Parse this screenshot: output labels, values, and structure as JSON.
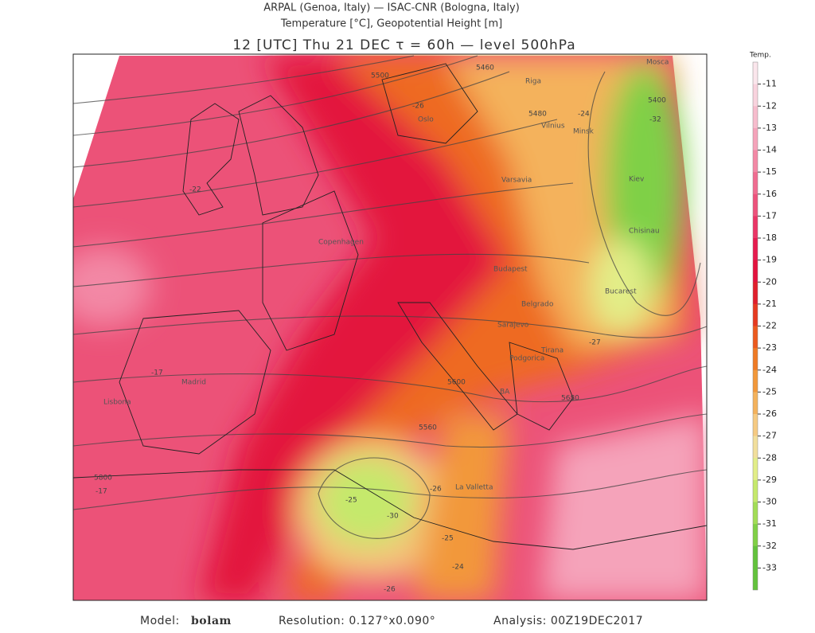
{
  "header": {
    "line1": "ARPAL (Genoa, Italy)  —  ISAC-CNR (Bologna, Italy)",
    "line2": "Temperature [°C], Geopotential Height [m]",
    "line3": "12 [UTC] Thu 21 DEC   τ = 60h   —   level 500hPa"
  },
  "colorbar": {
    "title": "Temp.",
    "levels": [
      {
        "value": -11,
        "color": "#fbe6ec"
      },
      {
        "value": -12,
        "color": "#f9d3de"
      },
      {
        "value": -13,
        "color": "#f7bccd"
      },
      {
        "value": -14,
        "color": "#f5a3ba"
      },
      {
        "value": -15,
        "color": "#f388a5"
      },
      {
        "value": -16,
        "color": "#f06c90"
      },
      {
        "value": -17,
        "color": "#ed527c"
      },
      {
        "value": -18,
        "color": "#ea3566"
      },
      {
        "value": -19,
        "color": "#e61b4f"
      },
      {
        "value": -20,
        "color": "#e3123e"
      },
      {
        "value": -21,
        "color": "#e01f2c"
      },
      {
        "value": -22,
        "color": "#e63a20"
      },
      {
        "value": -23,
        "color": "#ec5a1e"
      },
      {
        "value": -24,
        "color": "#ef7a24"
      },
      {
        "value": -25,
        "color": "#f2983a"
      },
      {
        "value": -26,
        "color": "#f4b25c"
      },
      {
        "value": -27,
        "color": "#f6ca82"
      },
      {
        "value": -28,
        "color": "#f2df9c"
      },
      {
        "value": -29,
        "color": "#e2ee88"
      },
      {
        "value": -30,
        "color": "#c5e96c"
      },
      {
        "value": -31,
        "color": "#a2dd56"
      },
      {
        "value": -32,
        "color": "#80d046"
      },
      {
        "value": -33,
        "color": "#62c23c"
      }
    ]
  },
  "map": {
    "cities": [
      "Mosca",
      "Riga",
      "Vilnius",
      "Minsk",
      "Varsavia",
      "Kiev",
      "Chisinau",
      "Bucarest",
      "Budapest",
      "Belgrado",
      "Sarajevo",
      "Podgorica",
      "Tirana",
      "BA",
      "La Valletta",
      "Madrid",
      "Lisbona",
      "Oslo",
      "Copenhagen"
    ],
    "contour_labels": [
      "5460",
      "5500",
      "5480",
      "5400",
      "-32",
      "-26",
      "-24",
      "-22",
      "-27",
      "5560",
      "5600",
      "5680",
      "5800",
      "-17",
      "-17",
      "-25",
      "-30",
      "-26",
      "-26",
      "-25",
      "-24"
    ]
  },
  "footer": {
    "model_label": "Model:",
    "model": "bolam",
    "resolution": "Resolution: 0.127°x0.090°",
    "analysis": "Analysis: 00Z19DEC2017"
  }
}
